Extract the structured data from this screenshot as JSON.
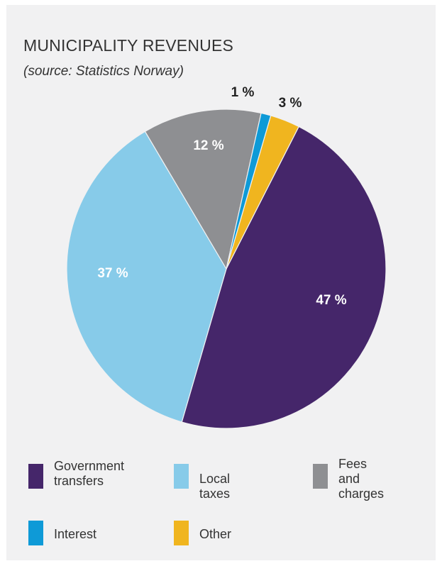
{
  "chart_data": {
    "type": "pie",
    "title": "MUNICIPALITY REVENUES",
    "subtitle": "(source: Statistics Norway)",
    "slices": [
      {
        "label": "Government transfers",
        "value": 47,
        "data_label": "47 %",
        "color": "#45266a",
        "label_color": "#ffffff"
      },
      {
        "label": "Local taxes",
        "value": 37,
        "data_label": "37 %",
        "color": "#87cbe9",
        "label_color": "#ffffff"
      },
      {
        "label": "Fees and charges",
        "value": 12,
        "data_label": "12 %",
        "color": "#8e8f92",
        "label_color": "#ffffff"
      },
      {
        "label": "Interest",
        "value": 1,
        "data_label": "1 %",
        "color": "#0e9ad7",
        "label_color": "#222222"
      },
      {
        "label": "Other",
        "value": 3,
        "data_label": "3 %",
        "color": "#f0b51f",
        "label_color": "#222222"
      }
    ],
    "legend": [
      {
        "label": "Government\ntransfers",
        "color": "#45266a"
      },
      {
        "label": "Local taxes",
        "color": "#87cbe9"
      },
      {
        "label": "Fees and\ncharges",
        "color": "#8e8f92"
      },
      {
        "label": "Interest",
        "color": "#0e9ad7"
      },
      {
        "label": "Other",
        "color": "#f0b51f"
      }
    ]
  }
}
